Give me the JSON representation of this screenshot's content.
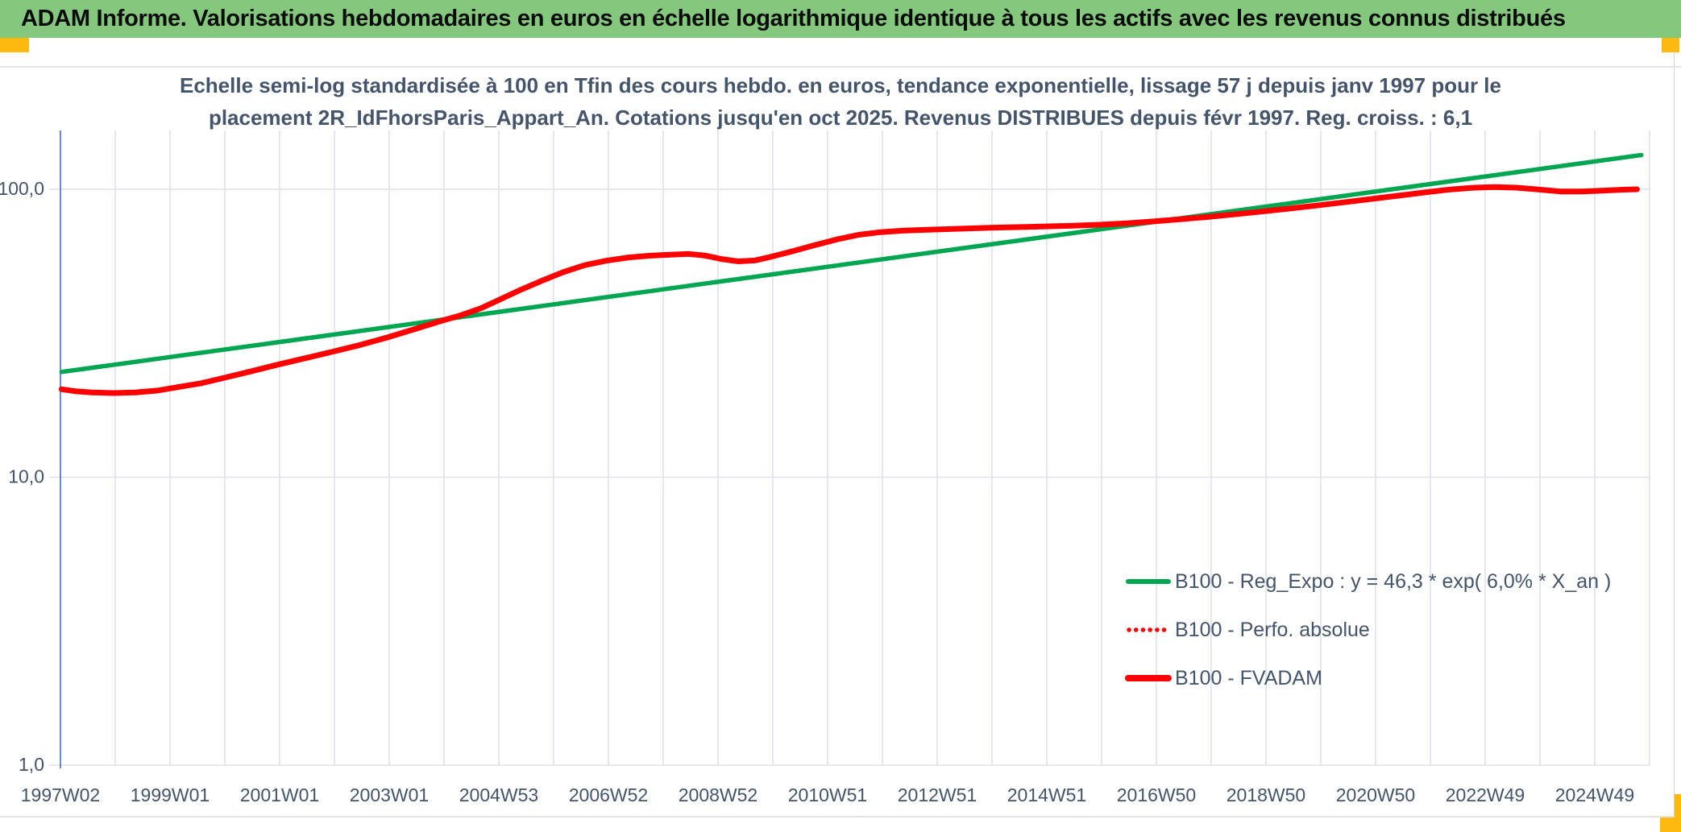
{
  "banner": {
    "title": "ADAM Informe. Valorisations hebdomadaires en euros en échelle logarithmique identique à tous les actifs avec les revenus connus distribués"
  },
  "chart_title": {
    "line1": "Echelle semi-log standardisée à 100 en Tfin des cours hebdo. en euros, tendance exponentielle, lissage 57 j depuis janv 1997 pour le",
    "line2": "placement 2R_IdFhorsParis_Appart_An. Cotations jusqu'en oct 2025. Revenus DISTRIBUES depuis févr 1997. Reg. croiss. : 6,1"
  },
  "colors": {
    "banner_bg": "#84C87D",
    "accent_orange": "#FBB90F",
    "text": "#44546A",
    "green_series": "#00A650",
    "red_series": "#FE0000",
    "gridline": "#DDE2EA",
    "axis_blue": "#4472C4"
  },
  "chart_data": {
    "type": "line",
    "x_axis": {
      "ticks": [
        "1997W02",
        "1999W01",
        "2001W01",
        "2003W01",
        "2004W53",
        "2006W52",
        "2008W52",
        "2010W51",
        "2012W51",
        "2014W51",
        "2016W50",
        "2018W50",
        "2020W50",
        "2022W49",
        "2024W49"
      ],
      "tick_years": [
        1997.03,
        1999.03,
        2001.03,
        2003.03,
        2005.03,
        2007.03,
        2009.03,
        2011.03,
        2013.03,
        2015.03,
        2017.03,
        2019.03,
        2021.03,
        2023.03,
        2025.03
      ],
      "year_min": 1997.03,
      "year_max": 2026.03,
      "gridline_every_years": 1
    },
    "y_axis": {
      "scale": "log",
      "labels": [
        "100,0",
        "10,0",
        "1,0"
      ],
      "values": [
        100,
        10,
        1
      ],
      "min": 1,
      "max": 157
    },
    "legend_position": "inside-bottom-right",
    "grid": true,
    "series": [
      {
        "name": "B100 - Reg_Expo : y = 46,3 * exp( 6,0% * X_an )",
        "style": "solid",
        "color_key": "green_series",
        "points": [
          [
            1997.05,
            23.2
          ],
          [
            2025.88,
            131.5
          ]
        ]
      },
      {
        "name": "B100 - Perfo. absolue",
        "style": "dotted",
        "color_key": "red_series",
        "points_same_as": 2
      },
      {
        "name": "B100 - FVADAM",
        "style": "solid-thick",
        "color_key": "red_series",
        "points": [
          [
            1997.05,
            20.2
          ],
          [
            1997.3,
            19.9
          ],
          [
            1997.6,
            19.7
          ],
          [
            1998.0,
            19.6
          ],
          [
            1998.4,
            19.7
          ],
          [
            1998.8,
            20.0
          ],
          [
            1999.2,
            20.6
          ],
          [
            1999.6,
            21.2
          ],
          [
            2000.0,
            22.1
          ],
          [
            2000.5,
            23.3
          ],
          [
            2001.0,
            24.6
          ],
          [
            2001.5,
            25.9
          ],
          [
            2002.0,
            27.3
          ],
          [
            2002.5,
            28.8
          ],
          [
            2003.0,
            30.6
          ],
          [
            2003.5,
            32.7
          ],
          [
            2004.0,
            35.0
          ],
          [
            2004.3,
            36.3
          ],
          [
            2004.7,
            38.6
          ],
          [
            2005.0,
            41.0
          ],
          [
            2005.4,
            44.5
          ],
          [
            2005.8,
            48.0
          ],
          [
            2006.2,
            51.5
          ],
          [
            2006.6,
            54.5
          ],
          [
            2007.0,
            56.5
          ],
          [
            2007.4,
            58.0
          ],
          [
            2007.8,
            58.8
          ],
          [
            2008.2,
            59.3
          ],
          [
            2008.5,
            59.6
          ],
          [
            2008.8,
            58.8
          ],
          [
            2009.1,
            57.2
          ],
          [
            2009.4,
            56.2
          ],
          [
            2009.7,
            56.6
          ],
          [
            2010.0,
            58.3
          ],
          [
            2010.4,
            61.0
          ],
          [
            2010.8,
            64.0
          ],
          [
            2011.2,
            67.0
          ],
          [
            2011.6,
            69.5
          ],
          [
            2012.0,
            71.0
          ],
          [
            2012.4,
            71.8
          ],
          [
            2012.8,
            72.3
          ],
          [
            2013.2,
            72.7
          ],
          [
            2013.6,
            73.1
          ],
          [
            2014.0,
            73.5
          ],
          [
            2014.5,
            73.9
          ],
          [
            2015.0,
            74.3
          ],
          [
            2015.5,
            74.7
          ],
          [
            2016.0,
            75.3
          ],
          [
            2016.5,
            76.2
          ],
          [
            2017.0,
            77.4
          ],
          [
            2017.5,
            78.8
          ],
          [
            2018.0,
            80.3
          ],
          [
            2018.5,
            82.0
          ],
          [
            2019.0,
            83.9
          ],
          [
            2019.5,
            85.9
          ],
          [
            2020.0,
            88.0
          ],
          [
            2020.5,
            90.3
          ],
          [
            2021.0,
            92.8
          ],
          [
            2021.5,
            95.3
          ],
          [
            2022.0,
            97.9
          ],
          [
            2022.4,
            99.9
          ],
          [
            2022.8,
            101.2
          ],
          [
            2023.2,
            101.8
          ],
          [
            2023.6,
            101.3
          ],
          [
            2024.0,
            99.9
          ],
          [
            2024.4,
            98.3
          ],
          [
            2024.8,
            98.2
          ],
          [
            2025.2,
            99.0
          ],
          [
            2025.5,
            99.6
          ],
          [
            2025.8,
            100.0
          ]
        ]
      }
    ]
  }
}
